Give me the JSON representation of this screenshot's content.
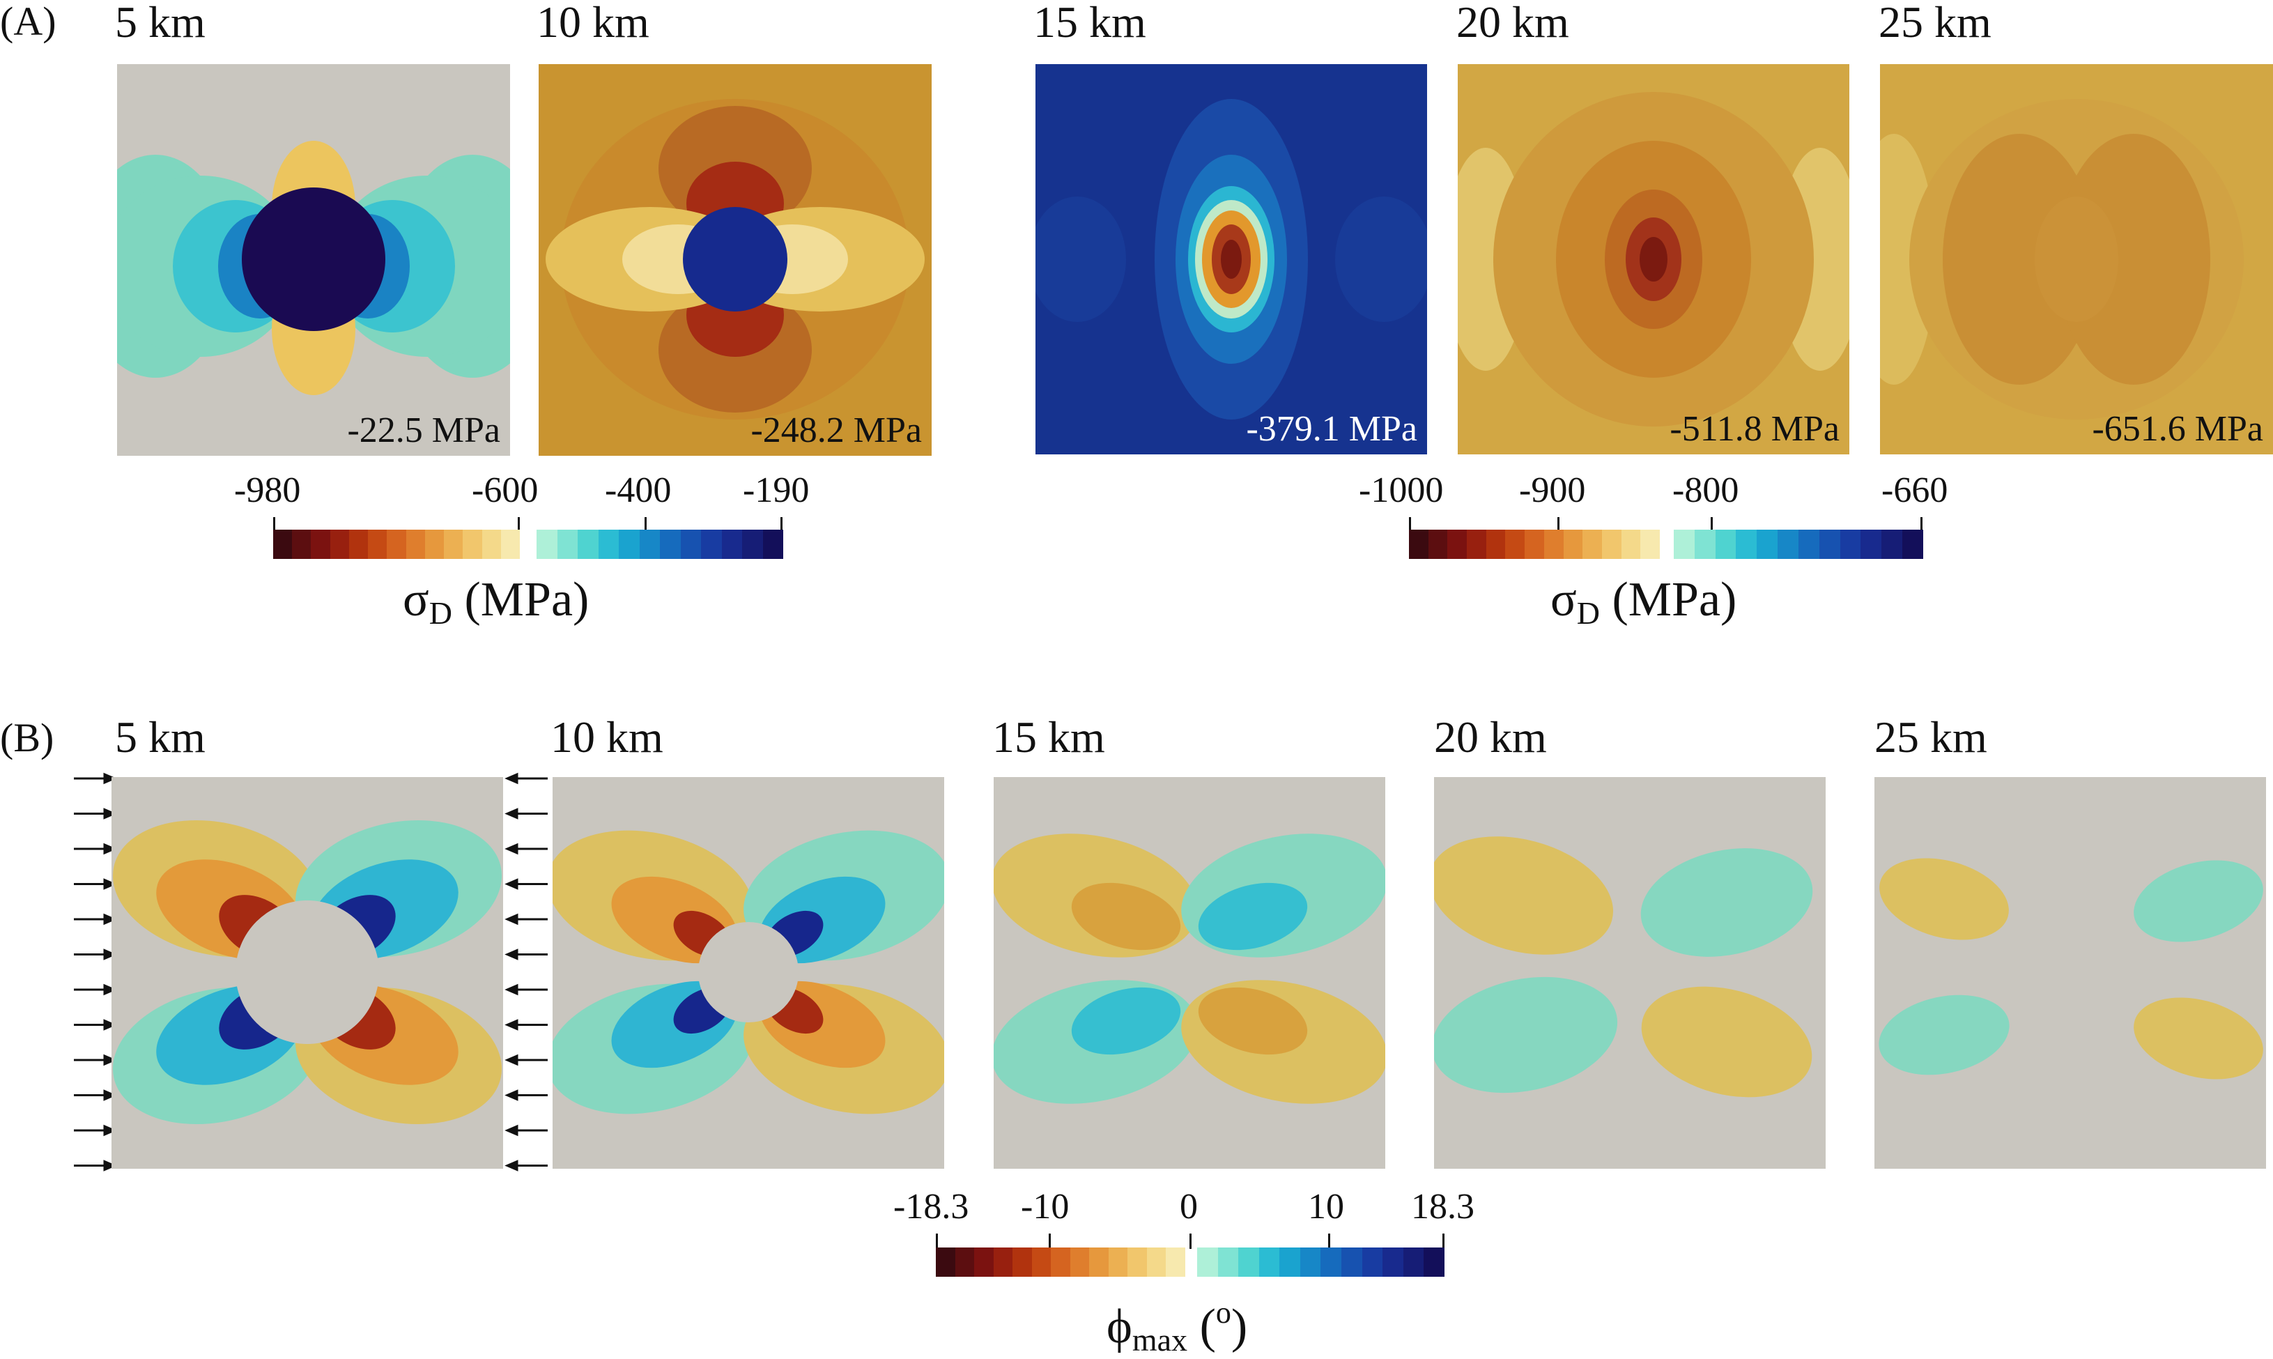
{
  "colors": {
    "gray": "#c9c6bf",
    "warm_scale": [
      "#3b0a10",
      "#5c0e10",
      "#7b1210",
      "#98200f",
      "#b1330e",
      "#c54a14",
      "#d56420",
      "#df7e2d",
      "#e6983d",
      "#ecb052",
      "#f1c66c",
      "#f4d98a",
      "#f7e9ae"
    ],
    "cool_scale": [
      "#aef0d8",
      "#7fe3d3",
      "#4fd3d0",
      "#2bbcd3",
      "#1aa3cf",
      "#1787c7",
      "#166bbd",
      "#1752b0",
      "#183ca2",
      "#182a8e",
      "#161d76",
      "#130f5a"
    ]
  },
  "panel_a": {
    "label": "(A)",
    "maps": [
      {
        "title": "5 km",
        "stress": "-22.5 MPa"
      },
      {
        "title": "10 km",
        "stress": "-248.2 MPa"
      },
      {
        "title": "15 km",
        "stress": "-379.1 MPa"
      },
      {
        "title": "20 km",
        "stress": "-511.8 MPa"
      },
      {
        "title": "25 km",
        "stress": "-651.6 MPa"
      }
    ],
    "colorbar_left": {
      "ticks": [
        "-980",
        "-600",
        "-400",
        "-190"
      ],
      "title_symbol": "σ",
      "title_sub": "D",
      "title_unit": " (MPa)"
    },
    "colorbar_right": {
      "ticks": [
        "-1000",
        "-900",
        "-800",
        "-660"
      ],
      "title_symbol": "σ",
      "title_sub": "D",
      "title_unit": " (MPa)"
    }
  },
  "panel_b": {
    "label": "(B)",
    "maps": [
      {
        "title": "5 km"
      },
      {
        "title": "10 km"
      },
      {
        "title": "15 km"
      },
      {
        "title": "20 km"
      },
      {
        "title": "25 km"
      }
    ],
    "colorbar": {
      "ticks": [
        "-18.3",
        "-10",
        "0",
        "10",
        "18.3"
      ],
      "title_symbol": "ϕ",
      "title_sub": "max",
      "title_unit": " (",
      "title_sup": "o",
      "title_end": ")"
    }
  }
}
